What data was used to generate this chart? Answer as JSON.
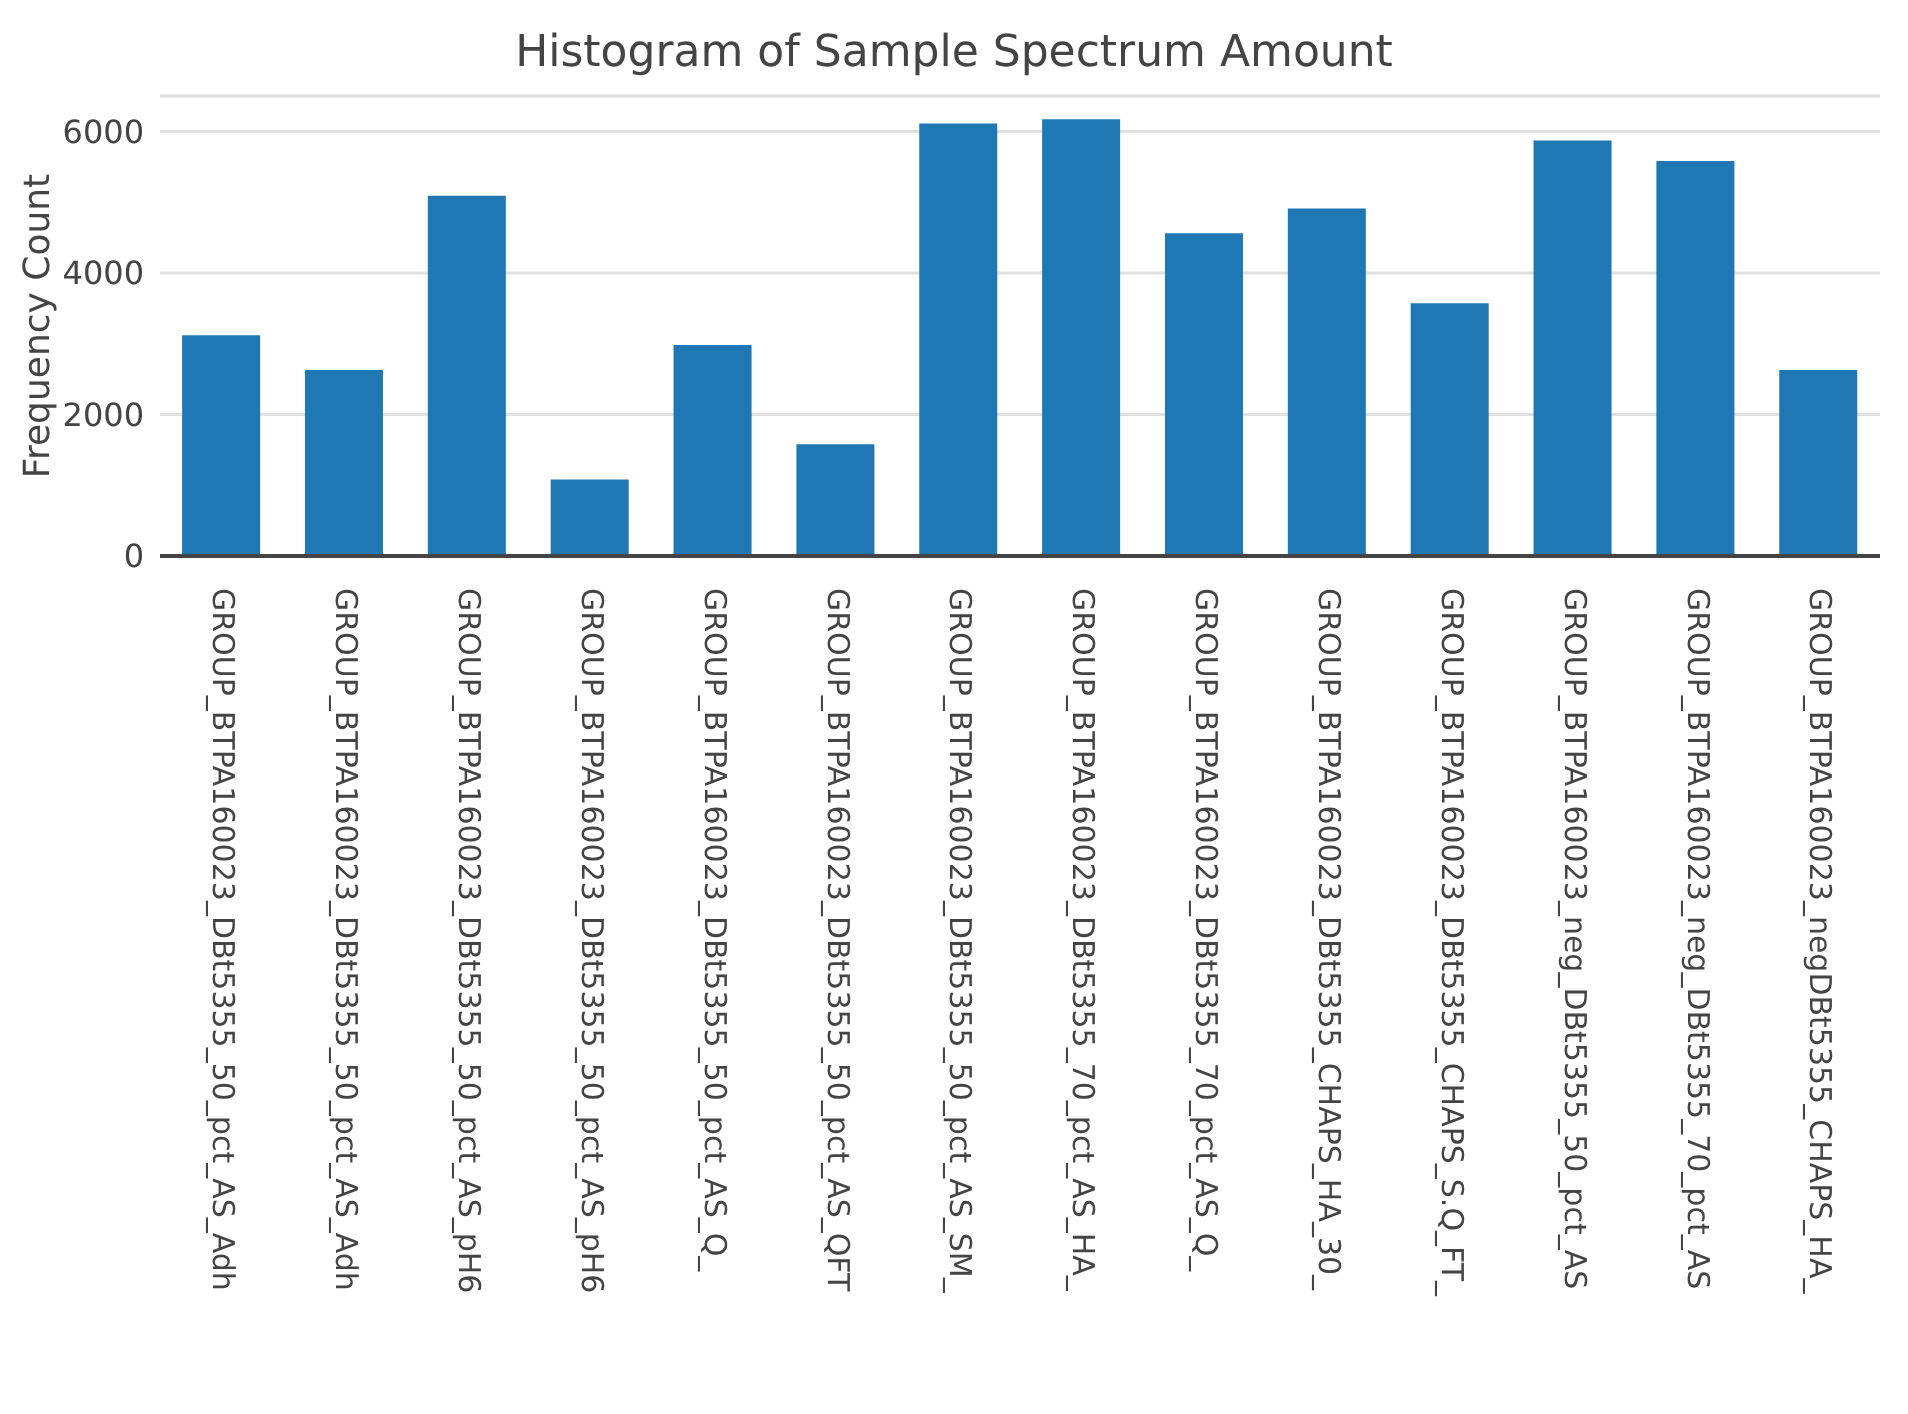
{
  "chart_data": {
    "type": "bar",
    "title": "Histogram of Sample Spectrum Amount",
    "ylabel": "Frequency Count",
    "categories": [
      "GROUP_BTPA160023_DBt5355_50_pct_AS_Adh",
      "GROUP_BTPA160023_DBt5355_50_pct_AS_Adh",
      "GROUP_BTPA160023_DBt5355_50_pct_AS_pH6",
      "GROUP_BTPA160023_DBt5355_50_pct_AS_pH6",
      "GROUP_BTPA160023_DBt5355_50_pct_AS_Q_",
      "GROUP_BTPA160023_DBt5355_50_pct_AS_QFT",
      "GROUP_BTPA160023_DBt5355_50_pct_AS_SM_",
      "GROUP_BTPA160023_DBt5355_70_pct_AS_HA_",
      "GROUP_BTPA160023_DBt5355_70_pct_AS_Q_",
      "GROUP_BTPA160023_DBt5355_CHAPS_HA_30_",
      "GROUP_BTPA160023_DBt5355_CHAPS_S.Q_FT_",
      "GROUP_BTPA160023_neg_DBt5355_50_pct_AS",
      "GROUP_BTPA160023_neg_DBt5355_70_pct_AS",
      "GROUP_BTPA160023_negDBt5355_CHAPS_HA_"
    ],
    "values": [
      3120,
      2630,
      5090,
      1080,
      2980,
      1580,
      6110,
      6170,
      4560,
      4910,
      3570,
      5870,
      5580,
      2630
    ],
    "color": "#1f77b4",
    "ylim": [
      0,
      6500
    ],
    "yticks": [
      0,
      2000,
      4000,
      6000
    ],
    "grid": "y",
    "legend": false
  }
}
